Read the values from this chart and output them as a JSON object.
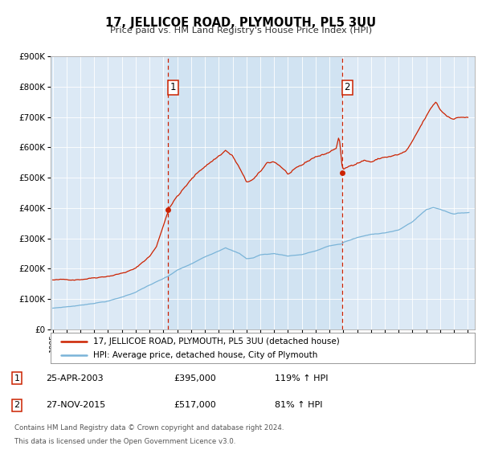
{
  "title": "17, JELLICOE ROAD, PLYMOUTH, PL5 3UU",
  "subtitle": "Price paid vs. HM Land Registry's House Price Index (HPI)",
  "hpi_color": "#7ab4d8",
  "price_color": "#cc2200",
  "bg_color": "#dce9f5",
  "highlight_color": "#cfe0f0",
  "grid_color": "#c8d8e8",
  "ann1_x": 2003.32,
  "ann1_y": 395000,
  "ann2_x": 2015.92,
  "ann2_y": 517000,
  "ylim": [
    0,
    900000
  ],
  "xlim_left": 1994.85,
  "xlim_right": 2025.5,
  "legend_line1": "17, JELLICOE ROAD, PLYMOUTH, PL5 3UU (detached house)",
  "legend_line2": "HPI: Average price, detached house, City of Plymouth",
  "footer1": "Contains HM Land Registry data © Crown copyright and database right 2024.",
  "footer2": "This data is licensed under the Open Government Licence v3.0.",
  "table_rows": [
    {
      "num": "1",
      "date": "25-APR-2003",
      "price": "£395,000",
      "pct": "119% ↑ HPI"
    },
    {
      "num": "2",
      "date": "27-NOV-2015",
      "price": "£517,000",
      "pct": "81% ↑ HPI"
    }
  ]
}
